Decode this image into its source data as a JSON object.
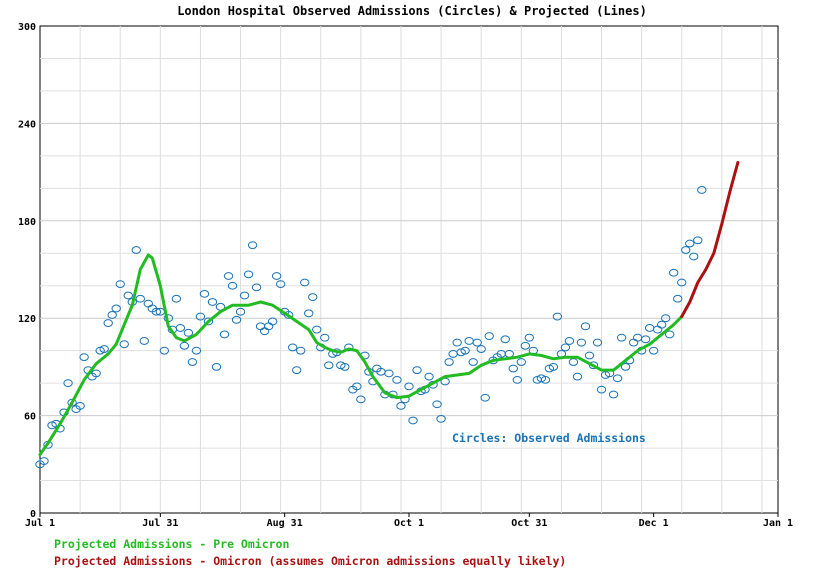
{
  "chart_data": {
    "type": "scatter",
    "title": "London Hospital Observed Admissions (Circles) & Projected (Lines)",
    "xlabel": "",
    "ylabel": "",
    "ylim": [
      0,
      300
    ],
    "xlim": [
      "2021-07-01",
      "2022-01-01"
    ],
    "x_ticks": [
      "Jul 1",
      "Jul 31",
      "Aug 31",
      "Oct 1",
      "Oct 31",
      "Dec 1",
      "Jan 1"
    ],
    "y_ticks": [
      "0",
      "60",
      "120",
      "180",
      "240",
      "300"
    ],
    "grid": true,
    "annotation": "Circles: Observed Admissions",
    "legend": [
      {
        "label": "Projected Admissions - Pre Omicron",
        "color": "#22bb22"
      },
      {
        "label": "Projected Admissions - Omicron (assumes Omicron admissions equally likely)",
        "color": "#aa1111"
      }
    ],
    "series": [
      {
        "marker": "circle",
        "color": "#1a73b5",
        "points": [
          [
            "2021-07-01",
            30
          ],
          [
            "2021-07-02",
            32
          ],
          [
            "2021-07-03",
            42
          ],
          [
            "2021-07-04",
            54
          ],
          [
            "2021-07-05",
            55
          ],
          [
            "2021-07-06",
            52
          ],
          [
            "2021-07-07",
            62
          ],
          [
            "2021-07-08",
            80
          ],
          [
            "2021-07-09",
            68
          ],
          [
            "2021-07-10",
            64
          ],
          [
            "2021-07-11",
            66
          ],
          [
            "2021-07-12",
            96
          ],
          [
            "2021-07-13",
            88
          ],
          [
            "2021-07-14",
            84
          ],
          [
            "2021-07-15",
            86
          ],
          [
            "2021-07-16",
            100
          ],
          [
            "2021-07-17",
            101
          ],
          [
            "2021-07-18",
            117
          ],
          [
            "2021-07-19",
            122
          ],
          [
            "2021-07-20",
            126
          ],
          [
            "2021-07-21",
            141
          ],
          [
            "2021-07-22",
            104
          ],
          [
            "2021-07-23",
            134
          ],
          [
            "2021-07-24",
            130
          ],
          [
            "2021-07-25",
            162
          ],
          [
            "2021-07-26",
            132
          ],
          [
            "2021-07-27",
            106
          ],
          [
            "2021-07-28",
            129
          ],
          [
            "2021-07-29",
            126
          ],
          [
            "2021-07-30",
            124
          ],
          [
            "2021-07-31",
            124
          ],
          [
            "2021-08-01",
            100
          ],
          [
            "2021-08-02",
            120
          ],
          [
            "2021-08-03",
            113
          ],
          [
            "2021-08-04",
            132
          ],
          [
            "2021-08-05",
            114
          ],
          [
            "2021-08-06",
            103
          ],
          [
            "2021-08-07",
            111
          ],
          [
            "2021-08-08",
            93
          ],
          [
            "2021-08-09",
            100
          ],
          [
            "2021-08-10",
            121
          ],
          [
            "2021-08-11",
            135
          ],
          [
            "2021-08-12",
            118
          ],
          [
            "2021-08-13",
            130
          ],
          [
            "2021-08-14",
            90
          ],
          [
            "2021-08-15",
            127
          ],
          [
            "2021-08-16",
            110
          ],
          [
            "2021-08-17",
            146
          ],
          [
            "2021-08-18",
            140
          ],
          [
            "2021-08-19",
            119
          ],
          [
            "2021-08-20",
            124
          ],
          [
            "2021-08-21",
            134
          ],
          [
            "2021-08-22",
            147
          ],
          [
            "2021-08-23",
            165
          ],
          [
            "2021-08-24",
            139
          ],
          [
            "2021-08-25",
            115
          ],
          [
            "2021-08-26",
            112
          ],
          [
            "2021-08-27",
            115
          ],
          [
            "2021-08-28",
            118
          ],
          [
            "2021-08-29",
            146
          ],
          [
            "2021-08-30",
            141
          ],
          [
            "2021-08-31",
            124
          ],
          [
            "2021-09-01",
            122
          ],
          [
            "2021-09-02",
            102
          ],
          [
            "2021-09-03",
            88
          ],
          [
            "2021-09-04",
            100
          ],
          [
            "2021-09-05",
            142
          ],
          [
            "2021-09-06",
            123
          ],
          [
            "2021-09-07",
            133
          ],
          [
            "2021-09-08",
            113
          ],
          [
            "2021-09-09",
            102
          ],
          [
            "2021-09-10",
            108
          ],
          [
            "2021-09-11",
            91
          ],
          [
            "2021-09-12",
            98
          ],
          [
            "2021-09-13",
            99
          ],
          [
            "2021-09-14",
            91
          ],
          [
            "2021-09-15",
            90
          ],
          [
            "2021-09-16",
            102
          ],
          [
            "2021-09-17",
            76
          ],
          [
            "2021-09-18",
            78
          ],
          [
            "2021-09-19",
            70
          ],
          [
            "2021-09-20",
            97
          ],
          [
            "2021-09-21",
            87
          ],
          [
            "2021-09-22",
            81
          ],
          [
            "2021-09-23",
            89
          ],
          [
            "2021-09-24",
            87
          ],
          [
            "2021-09-25",
            73
          ],
          [
            "2021-09-26",
            86
          ],
          [
            "2021-09-27",
            73
          ],
          [
            "2021-09-28",
            82
          ],
          [
            "2021-09-29",
            66
          ],
          [
            "2021-09-30",
            70
          ],
          [
            "2021-10-01",
            78
          ],
          [
            "2021-10-02",
            57
          ],
          [
            "2021-10-03",
            88
          ],
          [
            "2021-10-04",
            75
          ],
          [
            "2021-10-05",
            76
          ],
          [
            "2021-10-06",
            84
          ],
          [
            "2021-10-07",
            79
          ],
          [
            "2021-10-08",
            67
          ],
          [
            "2021-10-09",
            58
          ],
          [
            "2021-10-10",
            81
          ],
          [
            "2021-10-11",
            93
          ],
          [
            "2021-10-12",
            98
          ],
          [
            "2021-10-13",
            105
          ],
          [
            "2021-10-14",
            99
          ],
          [
            "2021-10-15",
            100
          ],
          [
            "2021-10-16",
            106
          ],
          [
            "2021-10-17",
            93
          ],
          [
            "2021-10-18",
            105
          ],
          [
            "2021-10-19",
            101
          ],
          [
            "2021-10-20",
            71
          ],
          [
            "2021-10-21",
            109
          ],
          [
            "2021-10-22",
            94
          ],
          [
            "2021-10-23",
            96
          ],
          [
            "2021-10-24",
            98
          ],
          [
            "2021-10-25",
            107
          ],
          [
            "2021-10-26",
            98
          ],
          [
            "2021-10-27",
            89
          ],
          [
            "2021-10-28",
            82
          ],
          [
            "2021-10-29",
            93
          ],
          [
            "2021-10-30",
            103
          ],
          [
            "2021-10-31",
            108
          ],
          [
            "2021-11-01",
            100
          ],
          [
            "2021-11-02",
            82
          ],
          [
            "2021-11-03",
            83
          ],
          [
            "2021-11-04",
            82
          ],
          [
            "2021-11-05",
            89
          ],
          [
            "2021-11-06",
            90
          ],
          [
            "2021-11-07",
            121
          ],
          [
            "2021-11-08",
            98
          ],
          [
            "2021-11-09",
            102
          ],
          [
            "2021-11-10",
            106
          ],
          [
            "2021-11-11",
            93
          ],
          [
            "2021-11-12",
            84
          ],
          [
            "2021-11-13",
            105
          ],
          [
            "2021-11-14",
            115
          ],
          [
            "2021-11-15",
            97
          ],
          [
            "2021-11-16",
            91
          ],
          [
            "2021-11-17",
            105
          ],
          [
            "2021-11-18",
            76
          ],
          [
            "2021-11-19",
            85
          ],
          [
            "2021-11-20",
            86
          ],
          [
            "2021-11-21",
            73
          ],
          [
            "2021-11-22",
            83
          ],
          [
            "2021-11-23",
            108
          ],
          [
            "2021-11-24",
            90
          ],
          [
            "2021-11-25",
            94
          ],
          [
            "2021-11-26",
            105
          ],
          [
            "2021-11-27",
            108
          ],
          [
            "2021-11-28",
            100
          ],
          [
            "2021-11-29",
            107
          ],
          [
            "2021-11-30",
            114
          ],
          [
            "2021-12-01",
            100
          ],
          [
            "2021-12-02",
            113
          ],
          [
            "2021-12-03",
            116
          ],
          [
            "2021-12-04",
            120
          ],
          [
            "2021-12-05",
            110
          ],
          [
            "2021-12-06",
            148
          ],
          [
            "2021-12-07",
            132
          ],
          [
            "2021-12-08",
            142
          ],
          [
            "2021-12-09",
            162
          ],
          [
            "2021-12-10",
            166
          ],
          [
            "2021-12-11",
            158
          ],
          [
            "2021-12-12",
            168
          ],
          [
            "2021-12-13",
            199
          ]
        ]
      },
      {
        "name": "Projected Admissions - Pre Omicron",
        "marker": "line",
        "color": "#22bb22",
        "points": [
          [
            "2021-07-01",
            36
          ],
          [
            "2021-07-03",
            43
          ],
          [
            "2021-07-06",
            55
          ],
          [
            "2021-07-09",
            68
          ],
          [
            "2021-07-12",
            82
          ],
          [
            "2021-07-15",
            92
          ],
          [
            "2021-07-18",
            98
          ],
          [
            "2021-07-20",
            104
          ],
          [
            "2021-07-22",
            116
          ],
          [
            "2021-07-24",
            128
          ],
          [
            "2021-07-26",
            150
          ],
          [
            "2021-07-28",
            159
          ],
          [
            "2021-07-29",
            157
          ],
          [
            "2021-07-31",
            140
          ],
          [
            "2021-08-02",
            115
          ],
          [
            "2021-08-04",
            108
          ],
          [
            "2021-08-06",
            106
          ],
          [
            "2021-08-09",
            110
          ],
          [
            "2021-08-12",
            118
          ],
          [
            "2021-08-15",
            124
          ],
          [
            "2021-08-18",
            128
          ],
          [
            "2021-08-22",
            128
          ],
          [
            "2021-08-25",
            130
          ],
          [
            "2021-08-28",
            128
          ],
          [
            "2021-08-31",
            123
          ],
          [
            "2021-09-03",
            118
          ],
          [
            "2021-09-06",
            113
          ],
          [
            "2021-09-08",
            105
          ],
          [
            "2021-09-10",
            102
          ],
          [
            "2021-09-12",
            100
          ],
          [
            "2021-09-14",
            99
          ],
          [
            "2021-09-16",
            101
          ],
          [
            "2021-09-18",
            100
          ],
          [
            "2021-09-20",
            93
          ],
          [
            "2021-09-22",
            84
          ],
          [
            "2021-09-25",
            74
          ],
          [
            "2021-09-28",
            71
          ],
          [
            "2021-10-01",
            72
          ],
          [
            "2021-10-04",
            76
          ],
          [
            "2021-10-07",
            80
          ],
          [
            "2021-10-10",
            84
          ],
          [
            "2021-10-13",
            85
          ],
          [
            "2021-10-16",
            86
          ],
          [
            "2021-10-19",
            91
          ],
          [
            "2021-10-22",
            94
          ],
          [
            "2021-10-25",
            95
          ],
          [
            "2021-10-28",
            96
          ],
          [
            "2021-10-31",
            98
          ],
          [
            "2021-11-03",
            97
          ],
          [
            "2021-11-06",
            95
          ],
          [
            "2021-11-09",
            96
          ],
          [
            "2021-11-12",
            96
          ],
          [
            "2021-11-15",
            92
          ],
          [
            "2021-11-18",
            88
          ],
          [
            "2021-11-21",
            88
          ],
          [
            "2021-11-24",
            94
          ],
          [
            "2021-11-27",
            100
          ],
          [
            "2021-11-30",
            104
          ],
          [
            "2021-12-03",
            110
          ],
          [
            "2021-12-06",
            116
          ],
          [
            "2021-12-08",
            121
          ]
        ]
      },
      {
        "name": "Projected Admissions - Omicron (assumes Omicron admissions equally likely)",
        "marker": "line",
        "color": "#aa1111",
        "points": [
          [
            "2021-12-08",
            121
          ],
          [
            "2021-12-10",
            130
          ],
          [
            "2021-12-12",
            142
          ],
          [
            "2021-12-14",
            150
          ],
          [
            "2021-12-16",
            160
          ],
          [
            "2021-12-18",
            178
          ],
          [
            "2021-12-20",
            198
          ],
          [
            "2021-12-22",
            216
          ]
        ]
      }
    ]
  }
}
